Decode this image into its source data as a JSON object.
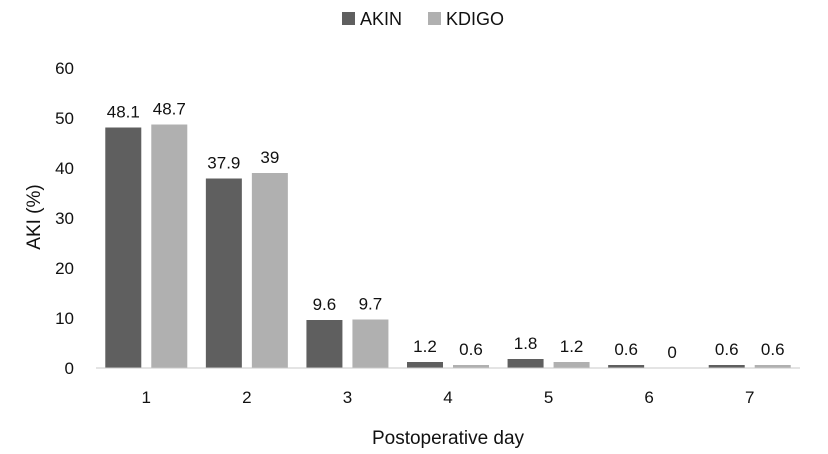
{
  "chart_data": {
    "type": "bar",
    "categories": [
      "1",
      "2",
      "3",
      "4",
      "5",
      "6",
      "7"
    ],
    "series": [
      {
        "name": "AKIN",
        "color": "#5f5f5f",
        "values": [
          48.1,
          37.9,
          9.6,
          1.2,
          1.8,
          0.6,
          0.6
        ]
      },
      {
        "name": "KDIGO",
        "color": "#b0b0b0",
        "values": [
          48.7,
          39,
          9.7,
          0.6,
          1.2,
          0,
          0.6
        ]
      }
    ],
    "data_labels": [
      [
        "48.1",
        "37.9",
        "9.6",
        "1.2",
        "1.8",
        "0.6",
        "0.6"
      ],
      [
        "48.7",
        "39",
        "9.7",
        "0.6",
        "1.2",
        "0",
        "0.6"
      ]
    ],
    "xlabel": "Postoperative day",
    "ylabel": "AKI (%)",
    "ylim": [
      0,
      60
    ],
    "yticks": [
      0,
      10,
      20,
      30,
      40,
      50,
      60
    ],
    "legend_position": "top-center",
    "grid": false
  }
}
